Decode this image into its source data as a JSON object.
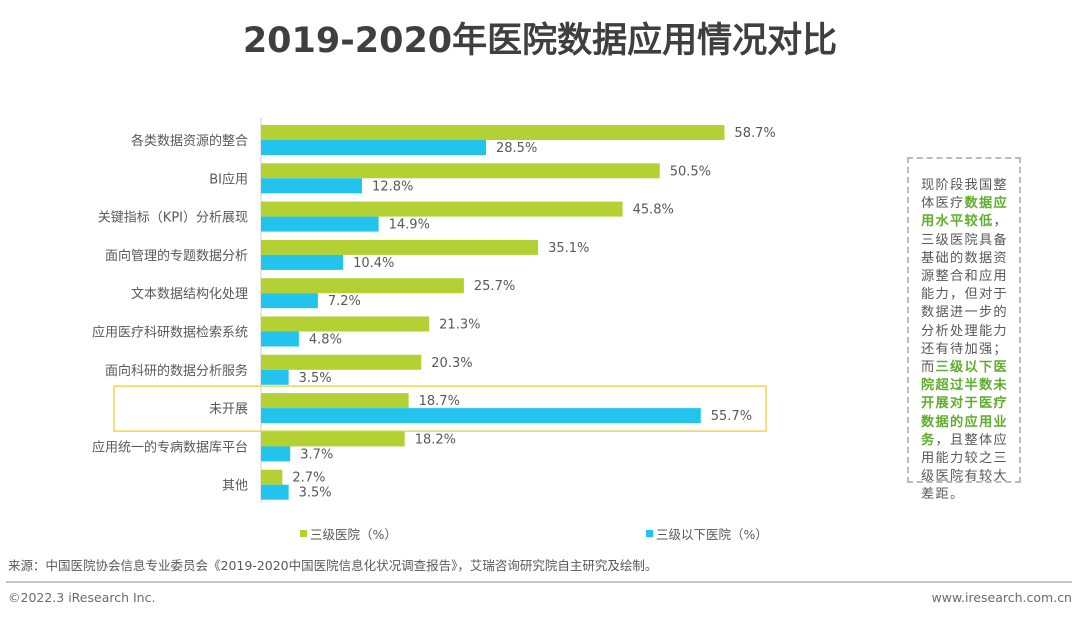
{
  "title": "2019-2020年医院数据应用情况对比",
  "colors": {
    "tier3": "#b3d132",
    "below_tier3": "#22c4ee",
    "highlight_box": "#f2d54d",
    "note_highlight": "#5fae2e"
  },
  "chart_data": {
    "type": "bar",
    "orientation": "horizontal",
    "title": "2019-2020年医院数据应用情况对比",
    "xlabel": "",
    "ylabel": "",
    "xlim": [
      0,
      60
    ],
    "grid": false,
    "legend_position": "bottom",
    "categories": [
      "各类数据资源的整合",
      "BI应用",
      "关键指标（KPI）分析展现",
      "面向管理的专题数据分析",
      "文本数据结构化处理",
      "应用医疗科研数据检索系统",
      "面向科研的数据分析服务",
      "未开展",
      "应用统一的专病数据库平台",
      "其他"
    ],
    "highlighted_category": "未开展",
    "series": [
      {
        "name": "三级医院（%）",
        "color": "#b3d132",
        "values": [
          58.7,
          50.5,
          45.8,
          35.1,
          25.7,
          21.3,
          20.3,
          18.7,
          18.2,
          2.7
        ],
        "labels": [
          "58.7%",
          "50.5%",
          "45.8%",
          "35.1%",
          "25.7%",
          "21.3%",
          "20.3%",
          "18.7%",
          "18.2%",
          "2.7%"
        ]
      },
      {
        "name": "三级以下医院（%）",
        "color": "#22c4ee",
        "values": [
          28.5,
          12.8,
          14.9,
          10.4,
          7.2,
          4.8,
          3.5,
          55.7,
          3.7,
          3.5
        ],
        "labels": [
          "28.5%",
          "12.8%",
          "14.9%",
          "10.4%",
          "7.2%",
          "4.8%",
          "3.5%",
          "55.7%",
          "3.7%",
          "3.5%"
        ]
      }
    ]
  },
  "legend": {
    "tier3": "三级医院（%）",
    "below_tier3": "三级以下医院（%）"
  },
  "note": {
    "segments": [
      {
        "text": "现阶段我国整体医疗",
        "highlight": false
      },
      {
        "text": "数据应用水平较低",
        "highlight": true
      },
      {
        "text": "，三级医院具备基础的数据资源整合和应用能力，但对于数据进一步的分析处理能力还有待加强；而",
        "highlight": false
      },
      {
        "text": "三级以下医院超过半数未开展对于医疗数据的应用业务",
        "highlight": true
      },
      {
        "text": "，且整体应用能力较之三级医院有较大差距。",
        "highlight": false
      }
    ]
  },
  "footer": {
    "source": "来源：中国医院协会信息专业委员会《2019-2020中国医院信息化状况调查报告》，艾瑞咨询研究院自主研究及绘制。",
    "copyright": "©2022.3 iResearch Inc.",
    "website": "www.iresearch.com.cn"
  }
}
